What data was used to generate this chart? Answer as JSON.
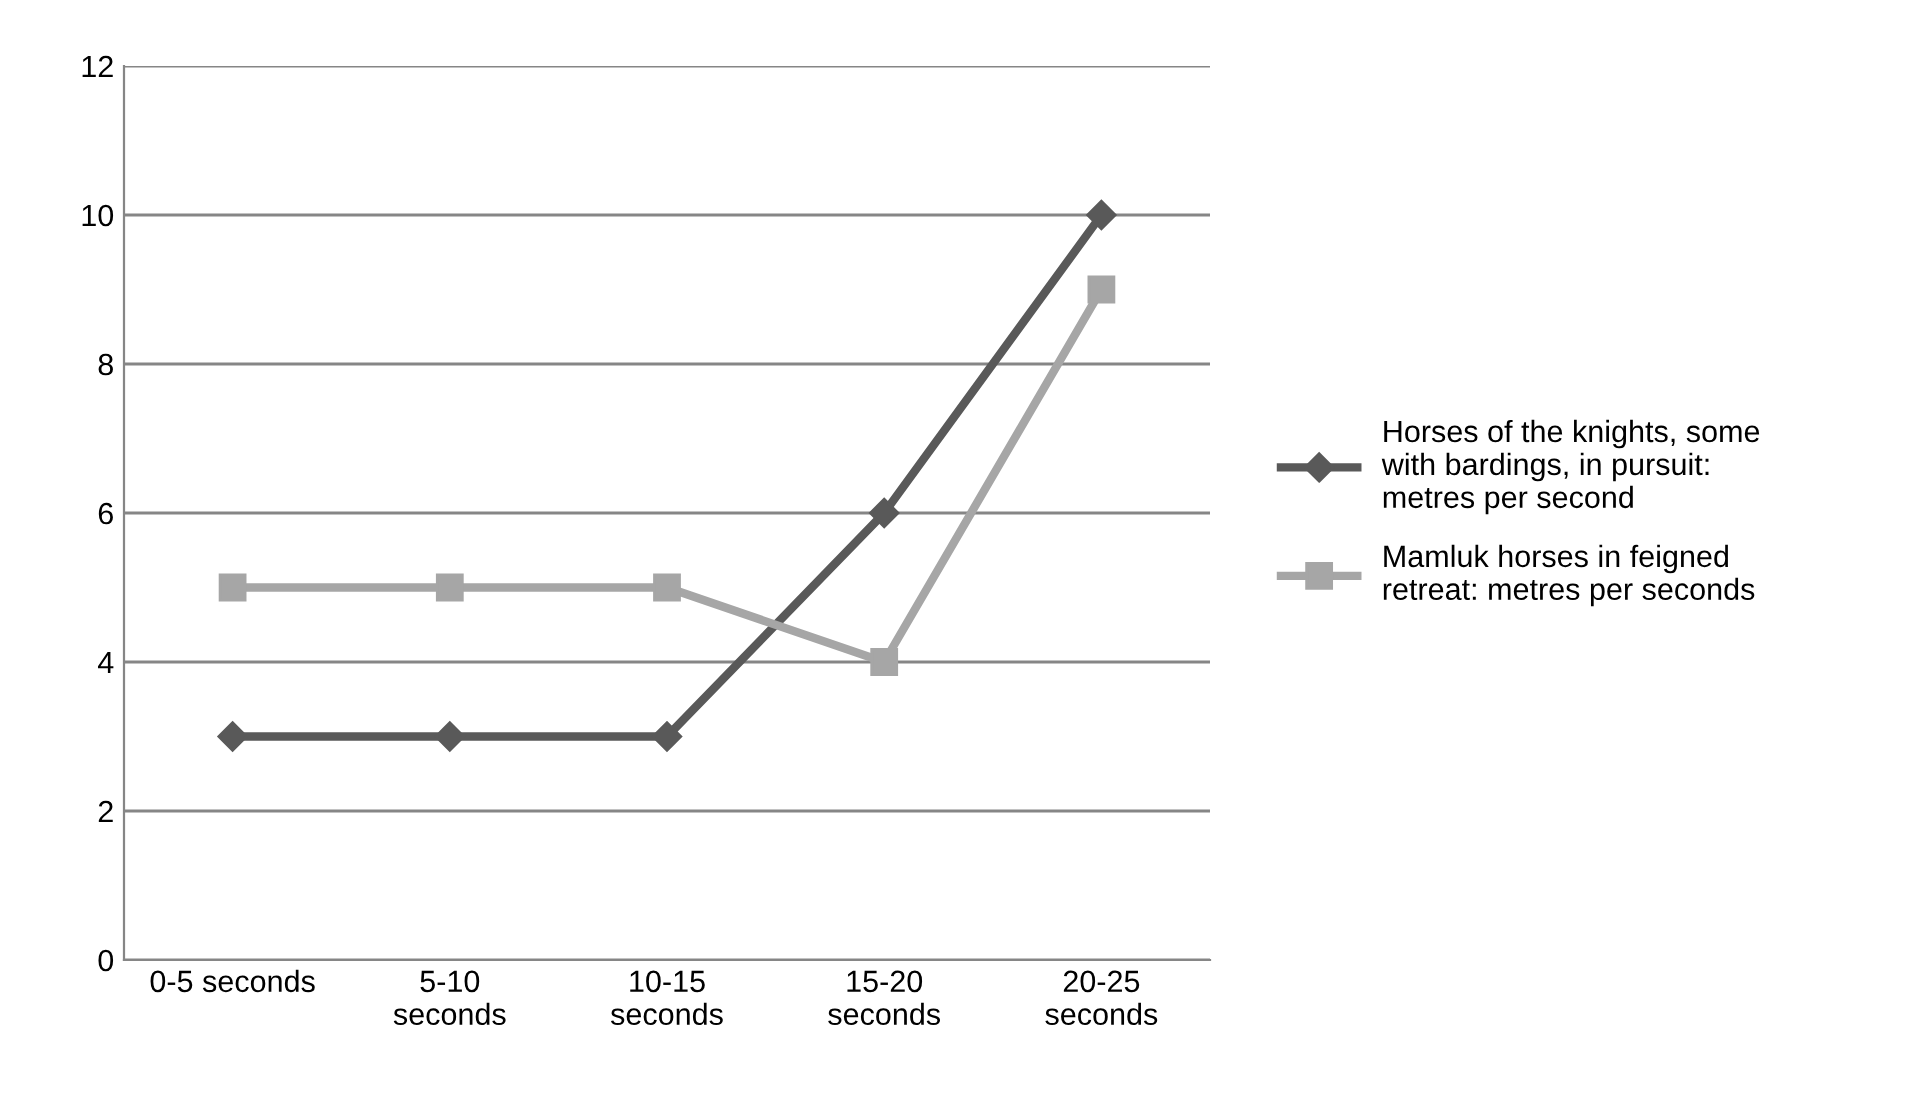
{
  "chart_data": {
    "type": "line",
    "categories": [
      "0-5 seconds",
      "5-10 seconds",
      "10-15 seconds",
      "15-20 seconds",
      "20-25 seconds"
    ],
    "series": [
      {
        "name": "Horses of the knights, some with bardings, in pursuit: metres per second",
        "color": "#595959",
        "marker": "diamond",
        "values": [
          3,
          3,
          3,
          6,
          10
        ]
      },
      {
        "name": "Mamluk horses in feigned retreat: metres per seconds",
        "color": "#a6a6a6",
        "marker": "square",
        "values": [
          5,
          5,
          5,
          4,
          9
        ]
      }
    ],
    "ylim": [
      0,
      12
    ],
    "yticks": [
      0,
      2,
      4,
      6,
      8,
      10,
      12
    ],
    "grid": "y",
    "legend": "right",
    "line_style": "solid"
  }
}
